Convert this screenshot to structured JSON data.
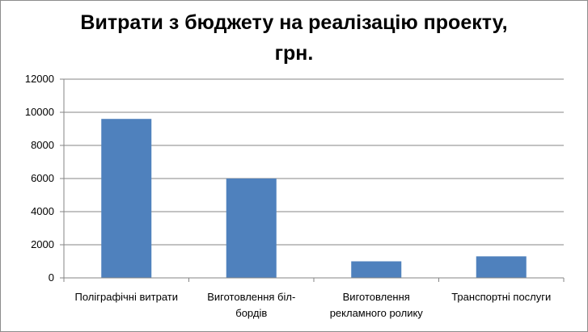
{
  "chart_data": {
    "type": "bar",
    "title": "Витрати з бюджету на реалізацію проекту, грн.",
    "title_lines": [
      "Витрати з бюджету на реалізацію проекту,",
      "грн."
    ],
    "categories": [
      "Поліграфічні витрати",
      "Виготовлення біл-бордів",
      "Виготовлення рекламного ролику",
      "Транспортні послуги"
    ],
    "category_lines": [
      [
        "Поліграфічні витрати"
      ],
      [
        "Виготовлення біл-",
        "бордів"
      ],
      [
        "Виготовлення",
        "рекламного ролику"
      ],
      [
        "Транспортні послуги"
      ]
    ],
    "values": [
      9600,
      6000,
      1000,
      1300
    ],
    "ylim": [
      0,
      12000
    ],
    "yticks": [
      "0",
      "2000",
      "4000",
      "6000",
      "8000",
      "10000",
      "12000"
    ],
    "xlabel": "",
    "ylabel": "",
    "grid": true,
    "legend": "none",
    "bar_color": "#4f81bd",
    "grid_color": "#868686"
  }
}
